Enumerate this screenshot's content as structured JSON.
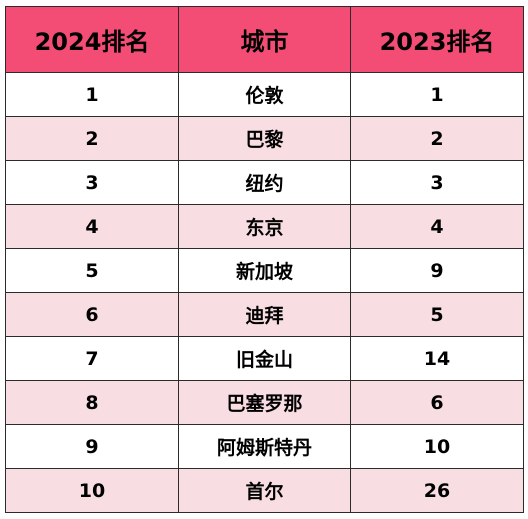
{
  "table": {
    "headers": [
      "2024排名",
      "城市",
      "2023排名"
    ],
    "rows": [
      [
        "1",
        "伦敦",
        "1"
      ],
      [
        "2",
        "巴黎",
        "2"
      ],
      [
        "3",
        "纽约",
        "3"
      ],
      [
        "4",
        "东京",
        "4"
      ],
      [
        "5",
        "新加坡",
        "9"
      ],
      [
        "6",
        "迪拜",
        "5"
      ],
      [
        "7",
        "旧金山",
        "14"
      ],
      [
        "8",
        "巴塞罗那",
        "6"
      ],
      [
        "9",
        "阿姆斯特丹",
        "10"
      ],
      [
        "10",
        "首尔",
        "26"
      ]
    ]
  },
  "colors": {
    "header_background": "#f34d75",
    "row_stripe": "#f8dde3",
    "border": "#2b2b2b"
  }
}
